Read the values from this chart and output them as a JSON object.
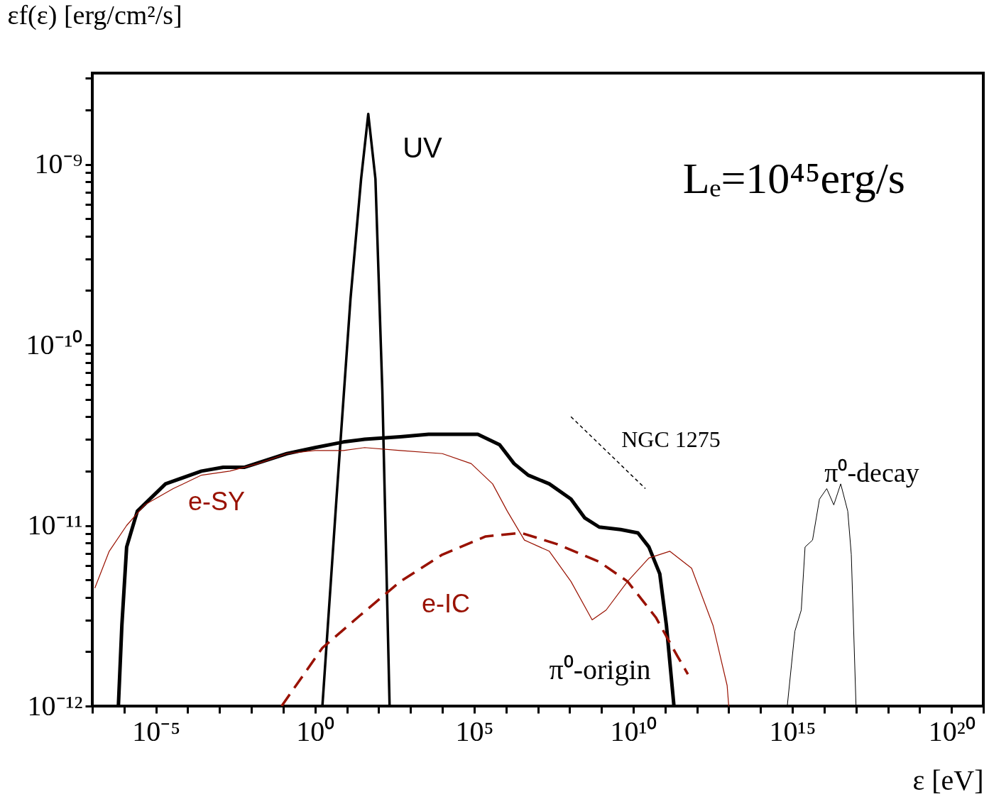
{
  "chart_data": {
    "type": "line",
    "xlabel": "ε [eV]",
    "ylabel": "εf(ε) [erg/cm²/s]",
    "log": "xy",
    "grid": false,
    "xlim": [
      1e-07,
      1e+21
    ],
    "ylim": [
      1e-12,
      3.2e-09
    ],
    "xticks": [
      {
        "value": 1e-07,
        "label": null
      },
      {
        "value": 1e-06,
        "label": null
      },
      {
        "value": 1e-05,
        "label": "10⁻⁵"
      },
      {
        "value": 0.0001,
        "label": null
      },
      {
        "value": 0.001,
        "label": null
      },
      {
        "value": 0.01,
        "label": null
      },
      {
        "value": 0.1,
        "label": null
      },
      {
        "value": 1,
        "label": "10⁰"
      },
      {
        "value": 10,
        "label": null
      },
      {
        "value": 100,
        "label": null
      },
      {
        "value": 1000.0,
        "label": null
      },
      {
        "value": 10000.0,
        "label": null
      },
      {
        "value": 100000.0,
        "label": "10⁵"
      },
      {
        "value": 1000000.0,
        "label": null
      },
      {
        "value": 10000000.0,
        "label": null
      },
      {
        "value": 100000000.0,
        "label": null
      },
      {
        "value": 1000000000.0,
        "label": null
      },
      {
        "value": 10000000000.0,
        "label": "10¹⁰"
      },
      {
        "value": 100000000000.0,
        "label": null
      },
      {
        "value": 1000000000000.0,
        "label": null
      },
      {
        "value": 10000000000000.0,
        "label": null
      },
      {
        "value": 100000000000000.0,
        "label": null
      },
      {
        "value": 1000000000000000.0,
        "label": "10¹⁵"
      },
      {
        "value": 1e+16,
        "label": null
      },
      {
        "value": 1e+17,
        "label": null
      },
      {
        "value": 1e+18,
        "label": null
      },
      {
        "value": 1e+19,
        "label": null
      },
      {
        "value": 1e+20,
        "label": "10²⁰"
      },
      {
        "value": 1e+21,
        "label": null
      }
    ],
    "yticks": [
      {
        "value": 1e-12,
        "label": "10⁻¹²"
      },
      {
        "value": 2e-12,
        "label": null
      },
      {
        "value": 3e-12,
        "label": null
      },
      {
        "value": 4e-12,
        "label": null
      },
      {
        "value": 5e-12,
        "label": null
      },
      {
        "value": 6e-12,
        "label": null
      },
      {
        "value": 7e-12,
        "label": null
      },
      {
        "value": 8e-12,
        "label": null
      },
      {
        "value": 9e-12,
        "label": null
      },
      {
        "value": 1e-11,
        "label": "10⁻¹¹"
      },
      {
        "value": 2e-11,
        "label": null
      },
      {
        "value": 3e-11,
        "label": null
      },
      {
        "value": 4e-11,
        "label": null
      },
      {
        "value": 5e-11,
        "label": null
      },
      {
        "value": 6e-11,
        "label": null
      },
      {
        "value": 7e-11,
        "label": null
      },
      {
        "value": 8e-11,
        "label": null
      },
      {
        "value": 9e-11,
        "label": null
      },
      {
        "value": 1e-10,
        "label": "10⁻¹⁰"
      },
      {
        "value": 2e-10,
        "label": null
      },
      {
        "value": 3e-10,
        "label": null
      },
      {
        "value": 4e-10,
        "label": null
      },
      {
        "value": 5e-10,
        "label": null
      },
      {
        "value": 6e-10,
        "label": null
      },
      {
        "value": 7e-10,
        "label": null
      },
      {
        "value": 8e-10,
        "label": null
      },
      {
        "value": 9e-10,
        "label": null
      },
      {
        "value": 1e-09,
        "label": "10⁻⁹"
      },
      {
        "value": 2e-09,
        "label": null
      },
      {
        "value": 3e-09,
        "label": null
      }
    ],
    "series": [
      {
        "color": "#000000",
        "line_style": "solid",
        "x": [
          6.6e-07,
          8.5e-07,
          1.2e-06,
          2.6e-06,
          2e-05,
          0.00027,
          0.0013,
          0.0059,
          0.13,
          1,
          7.8,
          36,
          480,
          3700,
          130000.0,
          630000.0,
          1800000.0,
          5000000.0,
          23000000.0,
          110000000.0,
          300000000.0,
          850000000.0,
          4000000000.0,
          14000000000.0,
          31000000000.0,
          68000000000.0,
          110000000000.0,
          190000000000.0
        ],
        "values": [
          1e-12,
          2.8e-12,
          7.6e-12,
          1.2e-11,
          1.7e-11,
          2e-11,
          2.1e-11,
          2.1e-11,
          2.5e-11,
          2.7e-11,
          2.9e-11,
          3e-11,
          3.1e-11,
          3.2e-11,
          3.2e-11,
          2.8e-11,
          2.2e-11,
          1.9e-11,
          1.7e-11,
          1.4e-11,
          1.1e-11,
          9.8e-12,
          9.5e-12,
          9.1e-12,
          7.6e-12,
          5.4e-12,
          2.8e-12,
          1e-12
        ]
      },
      {
        "color": "#000000",
        "line_style": "solid",
        "x": [
          1.7,
          4.7,
          13,
          28,
          47,
          79,
          130,
          220
        ],
        "values": [
          1e-12,
          1.4e-11,
          1.8e-10,
          8.3e-10,
          1.9e-09,
          8.3e-10,
          5.6e-11,
          1e-12
        ]
      },
      {
        "color": "#991100",
        "line_style": "solid",
        "x": [
          1.2e-07,
          3.4e-07,
          1.2e-06,
          4.4e-06,
          3.5e-05,
          0.00027,
          0.0021,
          0.016,
          0.13,
          1,
          7.8,
          36,
          480,
          10000.0,
          81000.0,
          380000.0,
          1100000.0,
          3800000.0,
          23000000.0,
          110000000.0,
          510000000.0,
          1400000000.0,
          6600000000.0,
          31000000000.0,
          140000000000.0,
          680000000000.0,
          3200000000000.0,
          8900000000000.0,
          10000000000000.0
        ],
        "values": [
          4.5e-12,
          7.2e-12,
          1e-11,
          1.3e-11,
          1.6e-11,
          1.9e-11,
          2e-11,
          2.2e-11,
          2.5e-11,
          2.6e-11,
          2.6e-11,
          2.7e-11,
          2.6e-11,
          2.5e-11,
          2.2e-11,
          1.7e-11,
          1.2e-11,
          8.3e-12,
          7.2e-12,
          4.9e-12,
          3e-12,
          3.4e-12,
          4.9e-12,
          6.6e-12,
          7.2e-12,
          5.8e-12,
          2.8e-12,
          1.3e-12,
          1e-12
        ]
      },
      {
        "color": "#991100",
        "line_style": "dashed",
        "x": [
          0.089,
          1.7,
          22,
          480,
          10000.0,
          230000.0,
          3000000.0,
          39000000.0,
          850000000.0,
          6600000000.0,
          51000000000.0,
          240000000000.0,
          520000000000.0
        ],
        "values": [
          1e-12,
          2.1e-12,
          3.1e-12,
          4.9e-12,
          6.9e-12,
          8.7e-12,
          9.1e-12,
          7.9e-12,
          6.3e-12,
          4.9e-12,
          3.1e-12,
          1.9e-12,
          1.5e-12
        ]
      },
      {
        "color": "#000000",
        "line_style": "solid",
        "x": [
          690000000000000.0,
          1200000000000000.0,
          1900000000000000.0,
          2500000000000000.0,
          4300000000000000.0,
          7100000000000000.0,
          1.2e+16,
          2e+16,
          3.3e+16,
          5.5e+16,
          7.1e+16,
          1e+17
        ],
        "values": [
          1e-12,
          2.6e-12,
          3.4e-12,
          7.6e-12,
          8.3e-12,
          1.4e-11,
          1.6e-11,
          1.3e-11,
          1.7e-11,
          1.2e-11,
          6.9e-12,
          1e-12
        ]
      },
      {
        "color": "#000000",
        "line_style": "dashed",
        "x": [
          110000000.0,
          24000000000.0
        ],
        "values": [
          4e-11,
          1.6e-11
        ]
      }
    ],
    "annotations": [
      "Lₑ=10⁴⁵erg/s",
      "UV",
      "e-SY",
      "e-IC",
      "π⁰-origin",
      "π⁰-decay",
      "NGC 1275"
    ]
  }
}
